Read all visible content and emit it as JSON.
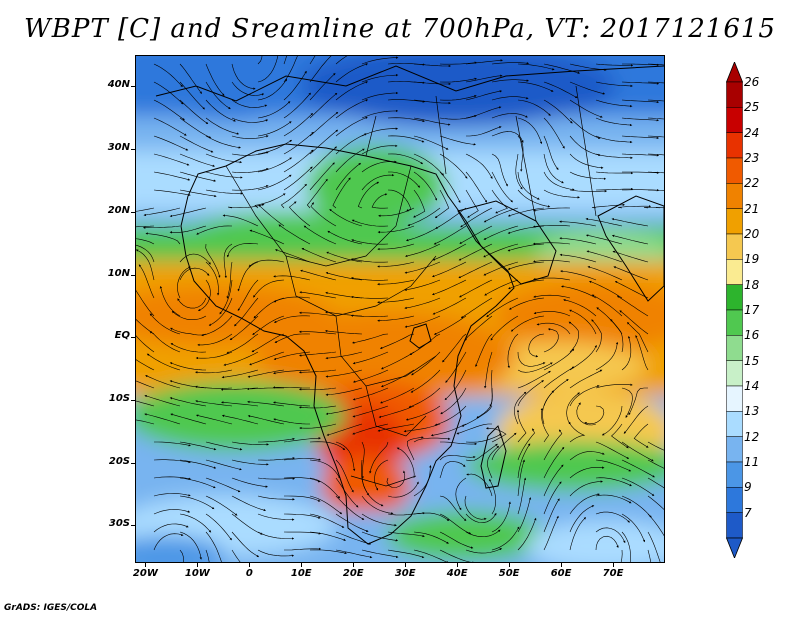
{
  "title": "WBPT [C] and Sreamline at 700hPa, VT: 2017121615",
  "credit": "GrADS: IGES/COLA",
  "map": {
    "lon_range": [
      -22,
      80
    ],
    "lat_range": [
      -36,
      45
    ],
    "lat_ticks": [
      {
        "value": 40,
        "label": "40N"
      },
      {
        "value": 30,
        "label": "30N"
      },
      {
        "value": 20,
        "label": "20N"
      },
      {
        "value": 10,
        "label": "10N"
      },
      {
        "value": 0,
        "label": "EQ"
      },
      {
        "value": -10,
        "label": "10S"
      },
      {
        "value": -20,
        "label": "20S"
      },
      {
        "value": -30,
        "label": "30S"
      }
    ],
    "lon_ticks": [
      {
        "value": -20,
        "label": "20W"
      },
      {
        "value": -10,
        "label": "10W"
      },
      {
        "value": 0,
        "label": "0"
      },
      {
        "value": 10,
        "label": "10E"
      },
      {
        "value": 20,
        "label": "20E"
      },
      {
        "value": 30,
        "label": "30E"
      },
      {
        "value": 40,
        "label": "40E"
      },
      {
        "value": 50,
        "label": "50E"
      },
      {
        "value": 60,
        "label": "60E"
      },
      {
        "value": 70,
        "label": "70E"
      }
    ]
  },
  "colorbar": {
    "labels": [
      "26",
      "25",
      "24",
      "23",
      "22",
      "21",
      "20",
      "19",
      "18",
      "17",
      "16",
      "15",
      "14",
      "13",
      "12",
      "11",
      "9",
      "7"
    ],
    "colors": [
      "#a80000",
      "#c80000",
      "#e83200",
      "#f05a00",
      "#f08200",
      "#f0a000",
      "#f5c850",
      "#faeb91",
      "#2db42d",
      "#50c850",
      "#8fdc8f",
      "#c8f0c8",
      "#e6f5ff",
      "#aadcff",
      "#78b4f0",
      "#4b96e6",
      "#2d78dc",
      "#1e5ac8"
    ],
    "top_arrow_color": "#a80000",
    "bottom_arrow_color": "#1e5ac8"
  }
}
